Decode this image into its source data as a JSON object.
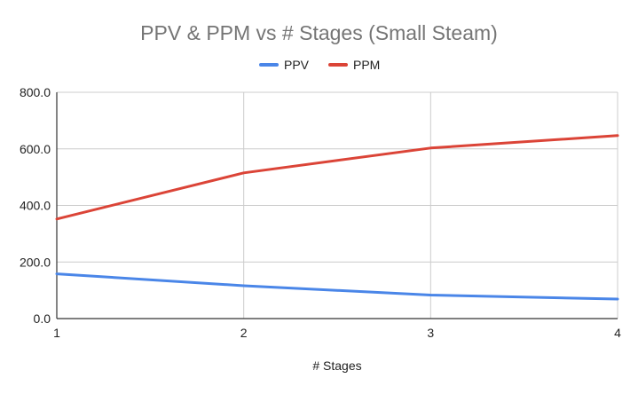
{
  "chart_data": {
    "type": "line",
    "title": "PPV & PPM vs # Stages (Small Steam)",
    "xlabel": "# Stages",
    "ylabel": "",
    "x": [
      1,
      2,
      3,
      4
    ],
    "x_tick_labels": [
      "1",
      "2",
      "3",
      "4"
    ],
    "ylim": [
      0,
      800
    ],
    "y_ticks": [
      0,
      200,
      400,
      600,
      800
    ],
    "y_tick_labels": [
      "0.0",
      "200.0",
      "400.0",
      "600.0",
      "800.0"
    ],
    "grid": true,
    "legend_position": "top-center",
    "series": [
      {
        "name": "PPV",
        "color": "#4a86e8",
        "values": [
          158,
          116,
          83,
          69
        ]
      },
      {
        "name": "PPM",
        "color": "#db4437",
        "values": [
          352,
          515,
          603,
          647
        ]
      }
    ]
  }
}
